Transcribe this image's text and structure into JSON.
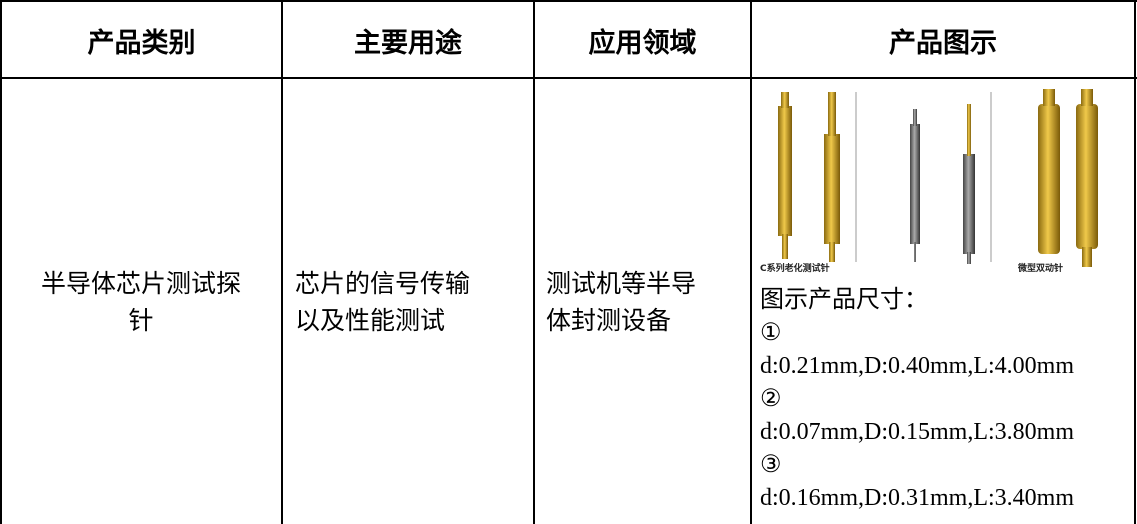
{
  "table": {
    "header": [
      "产品类别",
      "主要用途",
      "应用领域",
      "产品图示"
    ],
    "rows": [
      {
        "category": "半导体芯片测试探针",
        "usage": "芯片的信号传输以及性能测试",
        "field": "测试机等半导体封测设备",
        "figure": {
          "image_labels": [
            "C系列老化测试针",
            "微型双动针"
          ],
          "caption": "图示产品尺寸：",
          "items": [
            {
              "marker": "①",
              "spec": "d:0.21mm,D:0.40mm,L:4.00mm"
            },
            {
              "marker": "②",
              "spec": "d:0.07mm,D:0.15mm,L:3.80mm"
            },
            {
              "marker": "③",
              "spec": "d:0.16mm,D:0.31mm,L:3.40mm"
            }
          ]
        }
      }
    ]
  }
}
